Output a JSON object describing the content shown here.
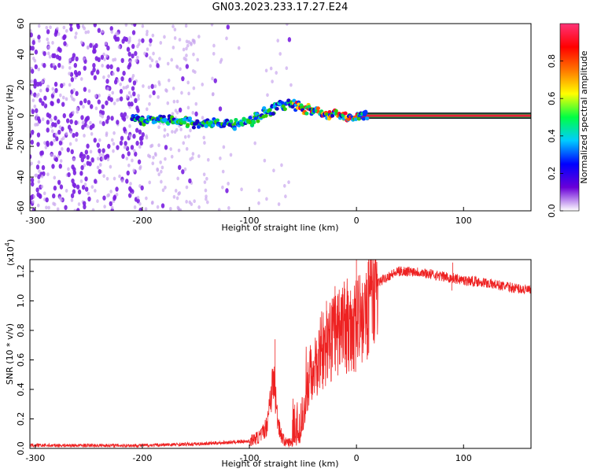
{
  "title": "GN03.2023.233.17.27.E24",
  "colors": {
    "snr_line": "#ee2222",
    "centerline": "#e8203a",
    "centerline_edge": "#1a1a2a",
    "scatter": "#7a1fe0",
    "scatter_light": "#c9a7ee"
  },
  "chart_data": [
    {
      "type": "heatmap",
      "title": "GN03.2023.233.17.27.E24",
      "xlabel": "Height of straight line (km)",
      "ylabel": "Frequency (Hz)",
      "xlim": [
        -305,
        163
      ],
      "ylim": [
        -62,
        60
      ],
      "x_ticks": [
        -300,
        -200,
        -100,
        0,
        100
      ],
      "y_ticks": [
        -60,
        -40,
        -20,
        0,
        20,
        40,
        60
      ],
      "colorbar": {
        "label": "Normalized spectral amplitude",
        "range": [
          0,
          1
        ],
        "ticks": [
          0.0,
          0.2,
          0.4,
          0.6,
          0.8
        ],
        "colors": [
          "#ffffff",
          "#6a00d8",
          "#0000ff",
          "#00ccff",
          "#00ff44",
          "#ffff00",
          "#ff7700",
          "#ff0000",
          "#ff3377"
        ]
      },
      "ridge": {
        "x": [
          -210,
          -190,
          -170,
          -150,
          -130,
          -115,
          -105,
          -95,
          -85,
          -75,
          -65,
          -55,
          -45,
          -38,
          -30,
          -20,
          -10,
          0,
          10,
          160
        ],
        "y": [
          -3,
          -3,
          -3,
          -5,
          -5,
          -6,
          -5,
          -2,
          2,
          5,
          8,
          6,
          5,
          3,
          1,
          1,
          -1,
          0,
          0,
          0
        ]
      },
      "grid": false
    },
    {
      "type": "line",
      "xlabel": "Height of straight line (km)",
      "ylabel": "SNR (10 * v/v)",
      "y_scale_label": "(x10",
      "y_scale_exp": "4",
      "y_scale_suffix": ")",
      "xlim": [
        -305,
        163
      ],
      "ylim": [
        0,
        1.28
      ],
      "x_ticks": [
        -300,
        -200,
        -100,
        0,
        100
      ],
      "y_ticks": [
        0.0,
        0.2,
        0.4,
        0.6,
        0.8,
        1.0,
        1.2
      ],
      "envelope": {
        "x": [
          -305,
          -250,
          -200,
          -150,
          -120,
          -100,
          -90,
          -84,
          -80,
          -77,
          -74,
          -70,
          -66,
          -60,
          -52,
          -45,
          -38,
          -32,
          -25,
          -18,
          -12,
          -5,
          0,
          5,
          10,
          15,
          20,
          30,
          40,
          55,
          70,
          85,
          100,
          115,
          130,
          145,
          163
        ],
        "y": [
          0.02,
          0.02,
          0.02,
          0.03,
          0.04,
          0.05,
          0.08,
          0.15,
          0.38,
          0.45,
          0.22,
          0.08,
          0.04,
          0.04,
          0.08,
          0.45,
          0.55,
          0.62,
          0.72,
          0.78,
          0.8,
          0.82,
          0.83,
          0.84,
          0.92,
          1.05,
          1.12,
          1.17,
          1.2,
          1.2,
          1.18,
          1.16,
          1.14,
          1.13,
          1.11,
          1.09,
          1.07
        ]
      },
      "spikes": [
        {
          "x": -76,
          "y": 0.74
        },
        {
          "x": -28,
          "y": 1.0
        },
        {
          "x": -20,
          "y": 1.1
        },
        {
          "x": 0,
          "y": 1.28
        },
        {
          "x": 90,
          "y": 1.26
        },
        {
          "x": 89,
          "y": 1.07
        }
      ],
      "grid": false
    }
  ]
}
